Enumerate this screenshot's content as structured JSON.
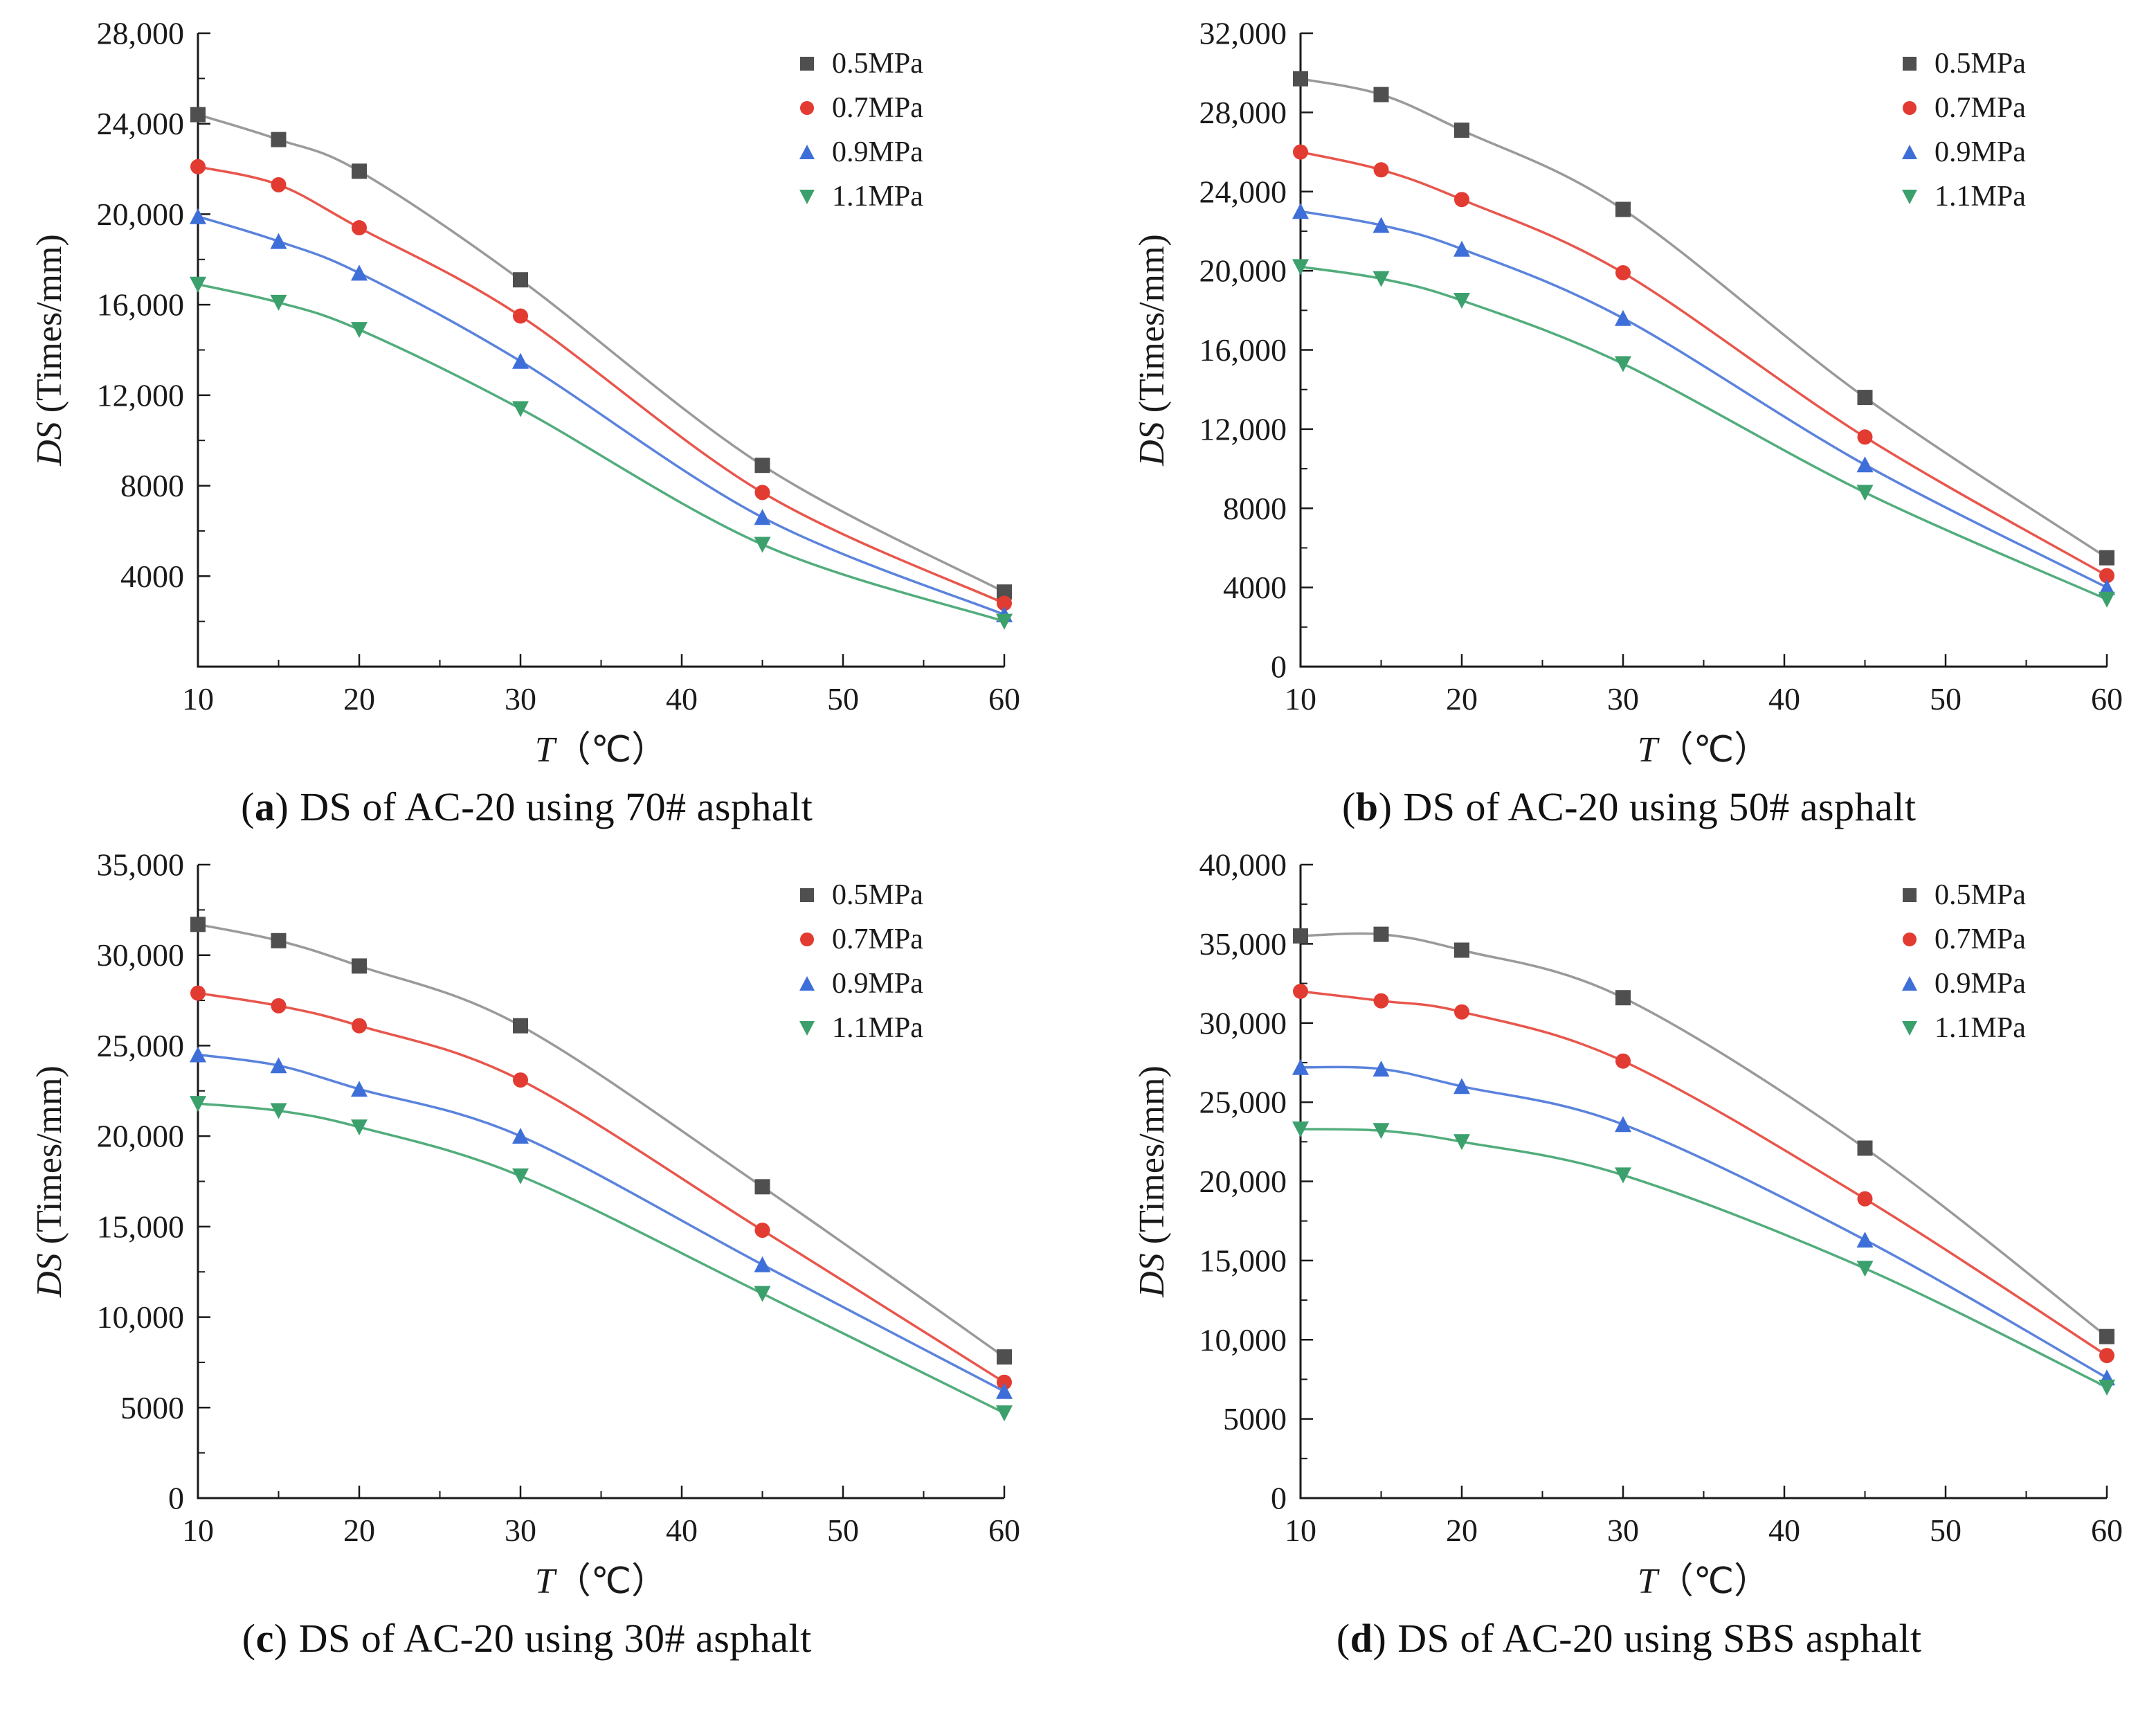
{
  "punct": {
    "open": "(",
    "close": ")"
  },
  "style": {
    "axis_color": "#1a1a1a",
    "background": "#ffffff"
  },
  "chart_data": [
    {
      "id": "a",
      "type": "scatter",
      "caption": {
        "letter": "a",
        "text": "DS of AC-20 using 70# asphalt"
      },
      "xlabel": {
        "var": "T",
        "unit": "（℃）"
      },
      "ylabel": {
        "var": "DS",
        "unit": " (Times/mm)"
      },
      "xlim": [
        10,
        60
      ],
      "xticks": [
        10,
        20,
        30,
        40,
        50,
        60
      ],
      "xminor": [
        15,
        25,
        35,
        45,
        55
      ],
      "ylim": [
        0,
        28000
      ],
      "yticks": [
        4000,
        8000,
        12000,
        16000,
        20000,
        24000,
        28000
      ],
      "ytick_step": 4000,
      "grid": false,
      "legend_position": "top-right",
      "x": [
        10,
        15,
        20,
        30,
        45,
        60
      ],
      "series": [
        {
          "name": "0.5MPa",
          "marker": "square",
          "color": "#4f4f4f",
          "line_color": "#9a9a9a",
          "values": [
            24400,
            23300,
            21900,
            17100,
            8900,
            3300
          ]
        },
        {
          "name": "0.7MPa",
          "marker": "circle",
          "color": "#e23b32",
          "line_color": "#e8564c",
          "values": [
            22100,
            21300,
            19400,
            15500,
            7700,
            2800
          ]
        },
        {
          "name": "0.9MPa",
          "marker": "triangle-up",
          "color": "#3e6fd8",
          "line_color": "#5b83dd",
          "values": [
            19900,
            18800,
            17400,
            13500,
            6600,
            2300
          ]
        },
        {
          "name": "1.1MPa",
          "marker": "triangle-down",
          "color": "#3ba06c",
          "line_color": "#52ad7c",
          "values": [
            16900,
            16100,
            14900,
            11400,
            5400,
            2000
          ]
        }
      ]
    },
    {
      "id": "b",
      "type": "scatter",
      "caption": {
        "letter": "b",
        "text": "DS of AC-20 using 50# asphalt"
      },
      "xlabel": {
        "var": "T",
        "unit": "（℃）"
      },
      "ylabel": {
        "var": "DS",
        "unit": " (Times/mm)"
      },
      "xlim": [
        10,
        60
      ],
      "xticks": [
        10,
        20,
        30,
        40,
        50,
        60
      ],
      "xminor": [
        15,
        25,
        35,
        45,
        55
      ],
      "ylim": [
        0,
        32000
      ],
      "yticks": [
        0,
        4000,
        8000,
        12000,
        16000,
        20000,
        24000,
        28000,
        32000
      ],
      "ytick_step": 4000,
      "grid": false,
      "legend_position": "top-right",
      "x": [
        10,
        15,
        20,
        30,
        45,
        60
      ],
      "series": [
        {
          "name": "0.5MPa",
          "marker": "square",
          "color": "#4f4f4f",
          "line_color": "#9a9a9a",
          "values": [
            29700,
            28900,
            27100,
            23100,
            13600,
            5500
          ]
        },
        {
          "name": "0.7MPa",
          "marker": "circle",
          "color": "#e23b32",
          "line_color": "#e8564c",
          "values": [
            26000,
            25100,
            23600,
            19900,
            11600,
            4600
          ]
        },
        {
          "name": "0.9MPa",
          "marker": "triangle-up",
          "color": "#3e6fd8",
          "line_color": "#5b83dd",
          "values": [
            23000,
            22300,
            21100,
            17600,
            10200,
            4000
          ]
        },
        {
          "name": "1.1MPa",
          "marker": "triangle-down",
          "color": "#3ba06c",
          "line_color": "#52ad7c",
          "values": [
            20200,
            19600,
            18500,
            15300,
            8800,
            3400
          ]
        }
      ]
    },
    {
      "id": "c",
      "type": "scatter",
      "caption": {
        "letter": "c",
        "text": "DS of AC-20 using 30# asphalt"
      },
      "xlabel": {
        "var": "T",
        "unit": "（℃）"
      },
      "ylabel": {
        "var": "DS",
        "unit": " (Times/mm)"
      },
      "xlim": [
        10,
        60
      ],
      "xticks": [
        10,
        20,
        30,
        40,
        50,
        60
      ],
      "xminor": [
        15,
        25,
        35,
        45,
        55
      ],
      "ylim": [
        0,
        35000
      ],
      "yticks": [
        0,
        5000,
        10000,
        15000,
        20000,
        25000,
        30000,
        35000
      ],
      "ytick_step": 5000,
      "grid": false,
      "legend_position": "top-right",
      "x": [
        10,
        15,
        20,
        30,
        45,
        60
      ],
      "series": [
        {
          "name": "0.5MPa",
          "marker": "square",
          "color": "#4f4f4f",
          "line_color": "#9a9a9a",
          "values": [
            31700,
            30800,
            29400,
            26100,
            17200,
            7800
          ]
        },
        {
          "name": "0.7MPa",
          "marker": "circle",
          "color": "#e23b32",
          "line_color": "#e8564c",
          "values": [
            27900,
            27200,
            26100,
            23100,
            14800,
            6400
          ]
        },
        {
          "name": "0.9MPa",
          "marker": "triangle-up",
          "color": "#3e6fd8",
          "line_color": "#5b83dd",
          "values": [
            24500,
            23900,
            22600,
            20000,
            12900,
            5900
          ]
        },
        {
          "name": "1.1MPa",
          "marker": "triangle-down",
          "color": "#3ba06c",
          "line_color": "#52ad7c",
          "values": [
            21800,
            21400,
            20500,
            17800,
            11300,
            4700
          ]
        }
      ]
    },
    {
      "id": "d",
      "type": "scatter",
      "caption": {
        "letter": "d",
        "text": "DS of AC-20 using SBS asphalt"
      },
      "xlabel": {
        "var": "T",
        "unit": "（℃）"
      },
      "ylabel": {
        "var": "DS",
        "unit": " (Times/mm)"
      },
      "xlim": [
        10,
        60
      ],
      "xticks": [
        10,
        20,
        30,
        40,
        50,
        60
      ],
      "xminor": [
        15,
        25,
        35,
        45,
        55
      ],
      "ylim": [
        0,
        40000
      ],
      "yticks": [
        0,
        5000,
        10000,
        15000,
        20000,
        25000,
        30000,
        35000,
        40000
      ],
      "ytick_step": 5000,
      "grid": false,
      "legend_position": "top-right",
      "x": [
        10,
        15,
        20,
        30,
        45,
        60
      ],
      "series": [
        {
          "name": "0.5MPa",
          "marker": "square",
          "color": "#4f4f4f",
          "line_color": "#9a9a9a",
          "values": [
            35500,
            35600,
            34600,
            31600,
            22100,
            10200
          ]
        },
        {
          "name": "0.7MPa",
          "marker": "circle",
          "color": "#e23b32",
          "line_color": "#e8564c",
          "values": [
            32000,
            31400,
            30700,
            27600,
            18900,
            9000
          ]
        },
        {
          "name": "0.9MPa",
          "marker": "triangle-up",
          "color": "#3e6fd8",
          "line_color": "#5b83dd",
          "values": [
            27200,
            27100,
            26000,
            23600,
            16300,
            7600
          ]
        },
        {
          "name": "1.1MPa",
          "marker": "triangle-down",
          "color": "#3ba06c",
          "line_color": "#52ad7c",
          "values": [
            23300,
            23200,
            22500,
            20400,
            14500,
            7000
          ]
        }
      ]
    }
  ]
}
